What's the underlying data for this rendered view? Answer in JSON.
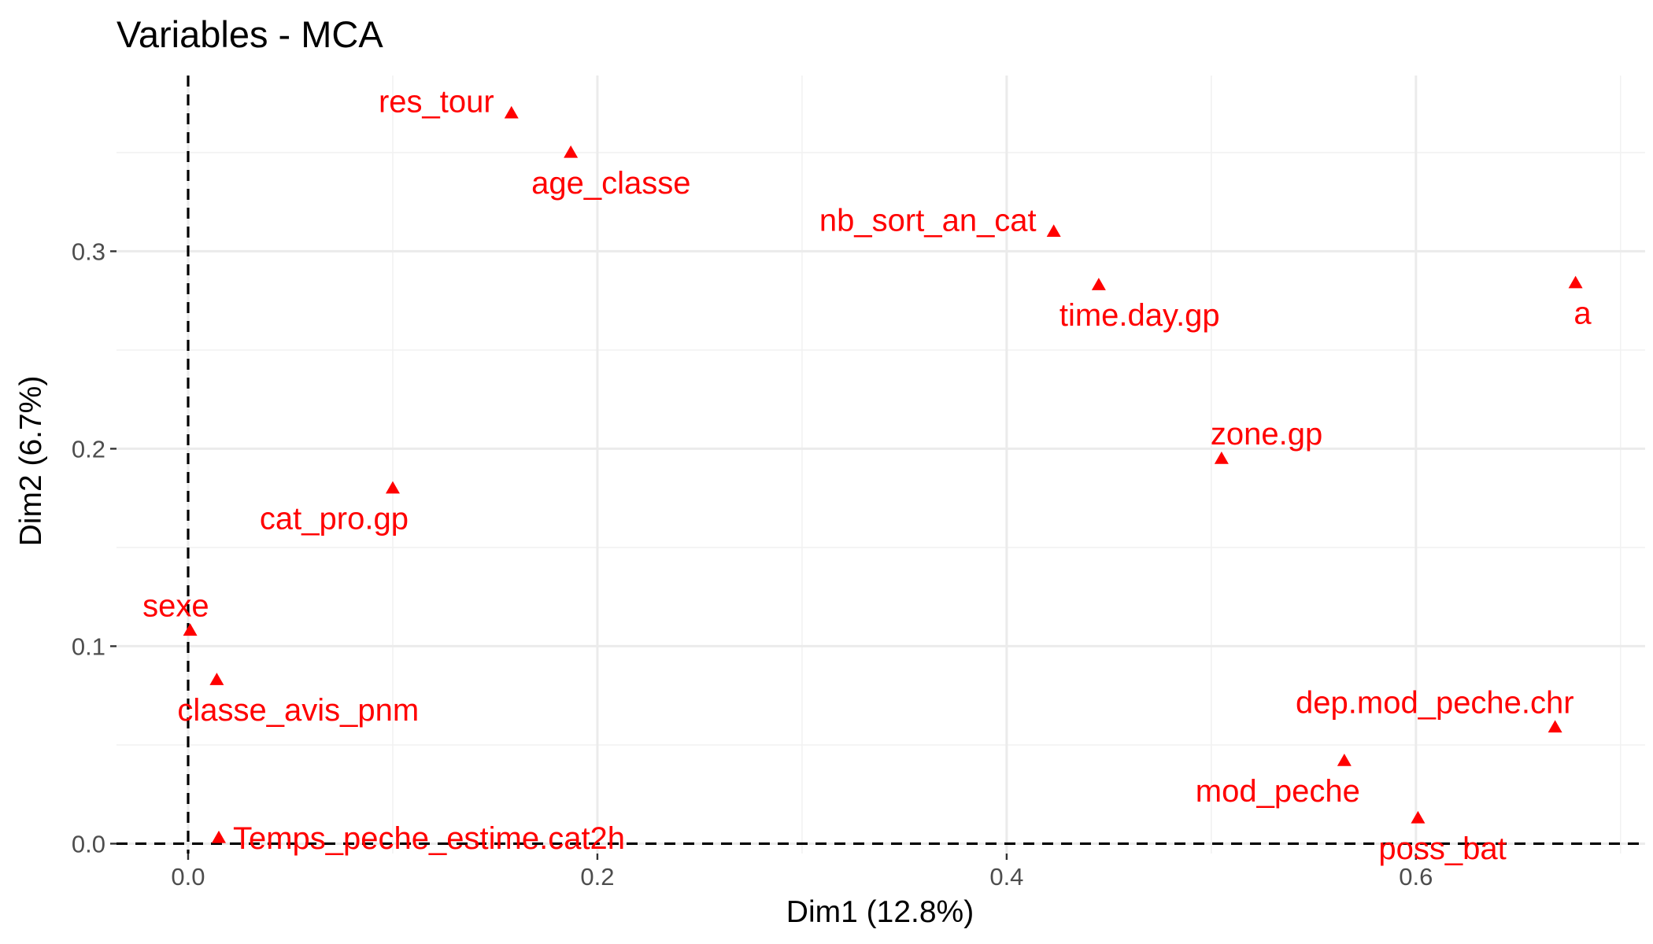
{
  "chart_data": {
    "type": "scatter",
    "title": "Variables - MCA",
    "xlabel": "Dim1 (12.8%)",
    "ylabel": "Dim2 (6.7%)",
    "xlim": [
      -0.035,
      0.712
    ],
    "ylim": [
      -0.005,
      0.389
    ],
    "x_ticks": [
      0.0,
      0.2,
      0.4,
      0.6
    ],
    "x_tick_labels": [
      "0.0",
      "0.2",
      "0.4",
      "0.6"
    ],
    "y_ticks": [
      0.0,
      0.1,
      0.2,
      0.3
    ],
    "y_tick_labels": [
      "0.0",
      "0.1",
      "0.2",
      "0.3"
    ],
    "grid": true,
    "reference_lines": {
      "x": 0,
      "y": 0
    },
    "marker": "triangle",
    "color": "#ff0000",
    "points": [
      {
        "label": "res_tour",
        "x": 0.158,
        "y": 0.37,
        "label_pos": "upper-left"
      },
      {
        "label": "age_classe",
        "x": 0.187,
        "y": 0.35,
        "label_pos": "below-right"
      },
      {
        "label": "nb_sort_an_cat",
        "x": 0.423,
        "y": 0.31,
        "label_pos": "upper-left"
      },
      {
        "label": "time.day.gp",
        "x": 0.445,
        "y": 0.283,
        "label_pos": "below-right"
      },
      {
        "label": "a",
        "x": 0.678,
        "y": 0.284,
        "label_pos": "below-left"
      },
      {
        "label": "zone.gp",
        "x": 0.505,
        "y": 0.195,
        "label_pos": "above-right"
      },
      {
        "label": "cat_pro.gp",
        "x": 0.1,
        "y": 0.18,
        "label_pos": "below-left"
      },
      {
        "label": "sexe",
        "x": 0.001,
        "y": 0.108,
        "label_pos": "above-left"
      },
      {
        "label": "classe_avis_pnm",
        "x": 0.014,
        "y": 0.083,
        "label_pos": "below-right"
      },
      {
        "label": "dep.mod_peche.chr",
        "x": 0.668,
        "y": 0.059,
        "label_pos": "above-left"
      },
      {
        "label": "mod_peche",
        "x": 0.565,
        "y": 0.042,
        "label_pos": "below-left"
      },
      {
        "label": "poss_bat",
        "x": 0.601,
        "y": 0.013,
        "label_pos": "below-right"
      },
      {
        "label": "Temps_peche_estime.cat2h",
        "x": 0.015,
        "y": 0.003,
        "label_pos": "right"
      }
    ]
  }
}
